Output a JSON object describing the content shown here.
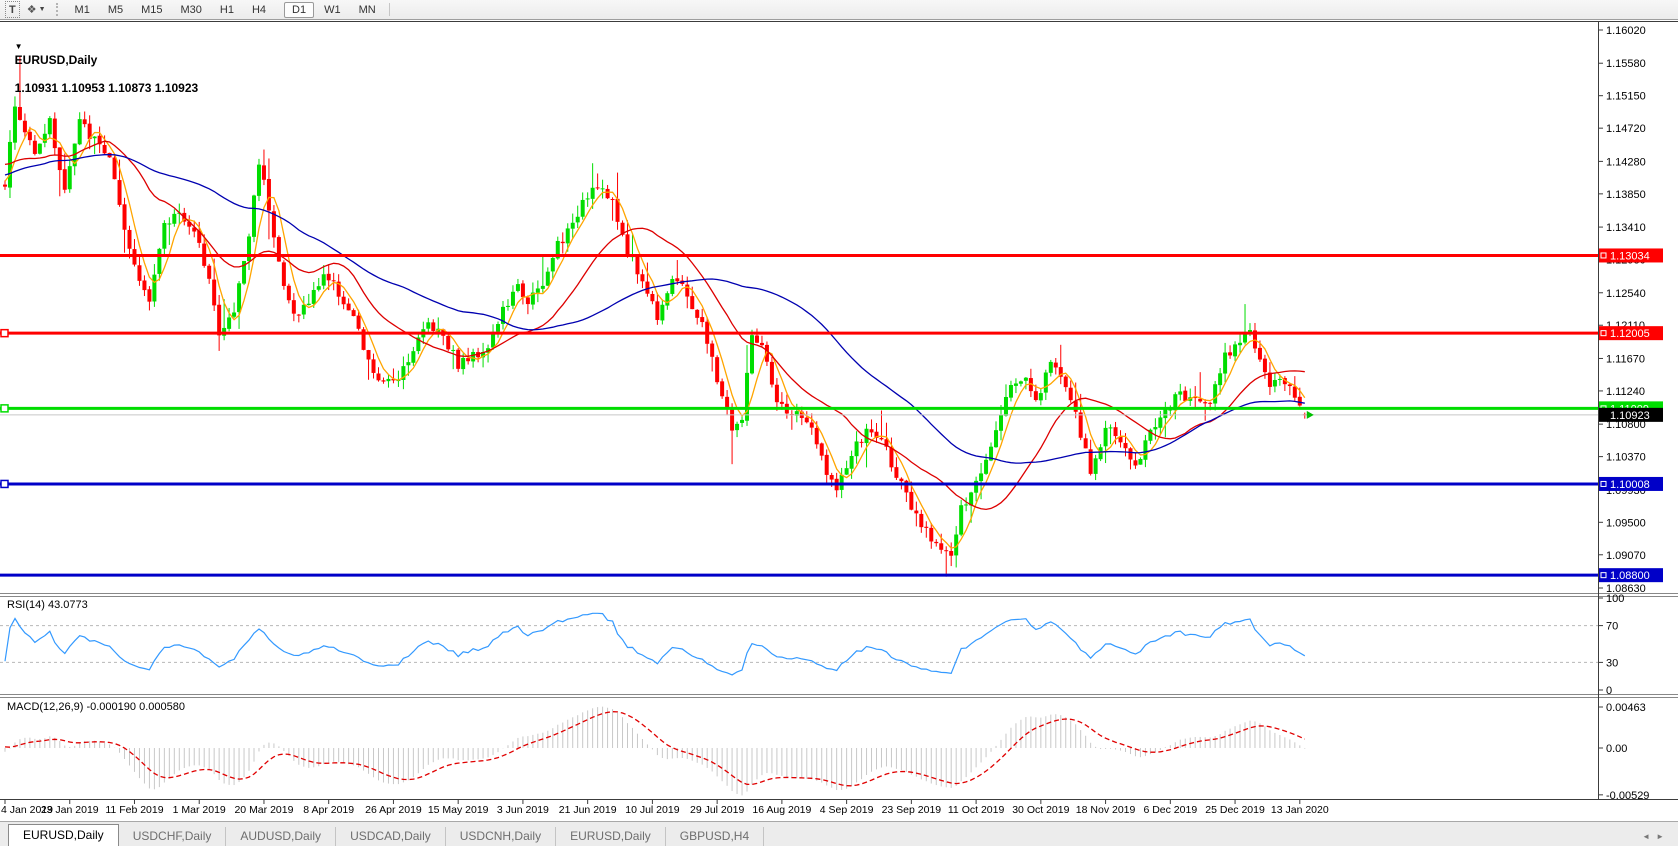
{
  "toolbar": {
    "timeframes": [
      "M1",
      "M5",
      "M15",
      "M30",
      "H1",
      "H4",
      "D1",
      "W1",
      "MN"
    ],
    "active_timeframe": "D1"
  },
  "icons": {
    "text_tool": "T",
    "cycles_tool": "❖",
    "dropdown_caret": "▼",
    "symbol_dropdown": "▼",
    "scroll_left": "◄",
    "scroll_right": "►"
  },
  "chart_header": {
    "symbol": "EURUSD,Daily",
    "ohlc": "1.10931 1.10953 1.10873 1.10923"
  },
  "price_axis": {
    "ticks": [
      "1.16020",
      "1.15580",
      "1.15150",
      "1.14720",
      "1.14280",
      "1.13850",
      "1.13410",
      "1.12980",
      "1.12540",
      "1.12110",
      "1.11670",
      "1.11240",
      "1.10800",
      "1.10370",
      "1.09930",
      "1.09500",
      "1.09070",
      "1.08630"
    ]
  },
  "rsi": {
    "label": "RSI(14) 43.0773",
    "period": 14,
    "last_value": 43.0773,
    "axis_labels": [
      "100",
      "70",
      "30",
      "0"
    ],
    "levels": [
      70,
      30
    ],
    "line_color": "#3399ff"
  },
  "macd": {
    "label": "MACD(12,26,9) -0.000190 0.000580",
    "params": "12,26,9",
    "last_values": [
      "-0.000190",
      "0.000580"
    ],
    "axis_labels": [
      "0.00463",
      "0.00",
      "-0.00529"
    ],
    "bar_color": "#c8c8c8",
    "signal_color": "#e00000"
  },
  "date_axis": {
    "labels": [
      "4 Jan 2019",
      "23 Jan 2019",
      "11 Feb 2019",
      "1 Mar 2019",
      "20 Mar 2019",
      "8 Apr 2019",
      "26 Apr 2019",
      "15 May 2019",
      "3 Jun 2019",
      "21 Jun 2019",
      "10 Jul 2019",
      "29 Jul 2019",
      "16 Aug 2019",
      "4 Sep 2019",
      "23 Sep 2019",
      "11 Oct 2019",
      "30 Oct 2019",
      "18 Nov 2019",
      "6 Dec 2019",
      "25 Dec 2019",
      "13 Jan 2020"
    ]
  },
  "tabs": {
    "items": [
      {
        "label": "EURUSD,Daily",
        "active": true
      },
      {
        "label": "USDCHF,Daily",
        "active": false
      },
      {
        "label": "AUDUSD,Daily",
        "active": false
      },
      {
        "label": "USDCAD,Daily",
        "active": false
      },
      {
        "label": "USDCNH,Daily",
        "active": false
      },
      {
        "label": "EURUSD,Daily",
        "active": false
      },
      {
        "label": "GBPUSD,H4",
        "active": false
      }
    ]
  },
  "chart_data": {
    "type": "candlestick",
    "symbol": "EURUSD",
    "timeframe": "Daily",
    "grid": false,
    "candle_up_color": "#00dd00",
    "candle_down_color": "#ff0000",
    "visible_range": {
      "price_top_tick": 1.1602,
      "price_bottom_tick": 1.0863,
      "first_date": "4 Jan 2019",
      "last_date": "13 Jan 2020"
    },
    "current_price": {
      "value": 1.10923,
      "label": "1.10923",
      "line_color": "#c6c6c6",
      "label_bg": "#000000",
      "arrow_color": "#00c000"
    },
    "last_candle": {
      "open": 1.10931,
      "high": 1.10953,
      "low": 1.10873,
      "close": 1.10923
    },
    "horizontal_lines": [
      {
        "price": 1.13034,
        "label": "1.13034",
        "color": "#ff0000",
        "width": 3,
        "left_marker": false
      },
      {
        "price": 1.12005,
        "label": "1.12005",
        "color": "#ff0000",
        "width": 3,
        "left_marker": true
      },
      {
        "price": 1.11009,
        "label": "1.11009",
        "color": "#00dd00",
        "width": 3,
        "left_marker": true
      },
      {
        "price": 1.10008,
        "label": "1.10008",
        "color": "#0000c8",
        "width": 3,
        "left_marker": true
      },
      {
        "price": 1.088,
        "label": "1.08800",
        "color": "#0000c8",
        "width": 3,
        "left_marker": false
      }
    ],
    "moving_averages": [
      {
        "name": "MA fast",
        "period": 5,
        "color": "#ffa500"
      },
      {
        "name": "MA medium",
        "period": 20,
        "color": "#dd0000"
      },
      {
        "name": "MA slow",
        "period": 50,
        "color": "#0000b0"
      }
    ],
    "bars_visible": 262,
    "bars_per_date_tick": 13,
    "warmup_anchors": [
      [
        -60,
        1.133
      ],
      [
        -45,
        1.137
      ],
      [
        -30,
        1.142
      ],
      [
        -15,
        1.1445
      ]
    ],
    "anchors": [
      [
        0,
        1.14
      ],
      [
        2,
        1.15
      ],
      [
        4,
        1.1465
      ],
      [
        6,
        1.1445
      ],
      [
        9,
        1.148
      ],
      [
        12,
        1.139
      ],
      [
        15,
        1.148
      ],
      [
        18,
        1.1455
      ],
      [
        21,
        1.1435
      ],
      [
        24,
        1.133
      ],
      [
        27,
        1.127
      ],
      [
        29,
        1.125
      ],
      [
        32,
        1.134
      ],
      [
        35,
        1.1365
      ],
      [
        38,
        1.133
      ],
      [
        41,
        1.128
      ],
      [
        43,
        1.1195
      ],
      [
        46,
        1.123
      ],
      [
        49,
        1.133
      ],
      [
        51,
        1.143
      ],
      [
        53,
        1.137
      ],
      [
        56,
        1.126
      ],
      [
        58,
        1.1225
      ],
      [
        61,
        1.124
      ],
      [
        64,
        1.128
      ],
      [
        67,
        1.1255
      ],
      [
        70,
        1.122
      ],
      [
        73,
        1.116
      ],
      [
        76,
        1.113
      ],
      [
        79,
        1.1145
      ],
      [
        82,
        1.118
      ],
      [
        85,
        1.1215
      ],
      [
        88,
        1.12
      ],
      [
        91,
        1.116
      ],
      [
        94,
        1.117
      ],
      [
        97,
        1.1185
      ],
      [
        100,
        1.123
      ],
      [
        103,
        1.126
      ],
      [
        105,
        1.1245
      ],
      [
        108,
        1.126
      ],
      [
        111,
        1.132
      ],
      [
        114,
        1.134
      ],
      [
        116,
        1.138
      ],
      [
        119,
        1.14
      ],
      [
        122,
        1.137
      ],
      [
        125,
        1.131
      ],
      [
        128,
        1.127
      ],
      [
        131,
        1.1225
      ],
      [
        134,
        1.1275
      ],
      [
        137,
        1.125
      ],
      [
        140,
        1.121
      ],
      [
        143,
        1.114
      ],
      [
        146,
        1.1075
      ],
      [
        148,
        1.1085
      ],
      [
        150,
        1.12
      ],
      [
        152,
        1.118
      ],
      [
        155,
        1.1105
      ],
      [
        158,
        1.1095
      ],
      [
        161,
        1.1085
      ],
      [
        164,
        1.1035
      ],
      [
        167,
        1.099
      ],
      [
        170,
        1.104
      ],
      [
        173,
        1.107
      ],
      [
        176,
        1.106
      ],
      [
        179,
        1.1015
      ],
      [
        182,
        1.0965
      ],
      [
        185,
        1.0935
      ],
      [
        188,
        1.092
      ],
      [
        190,
        1.0905
      ],
      [
        192,
        1.0965
      ],
      [
        194,
        1.0985
      ],
      [
        197,
        1.1035
      ],
      [
        200,
        1.11
      ],
      [
        202,
        1.113
      ],
      [
        205,
        1.1145
      ],
      [
        207,
        1.111
      ],
      [
        210,
        1.116
      ],
      [
        212,
        1.115
      ],
      [
        215,
        1.109
      ],
      [
        218,
        1.1015
      ],
      [
        221,
        1.1075
      ],
      [
        224,
        1.106
      ],
      [
        227,
        1.102
      ],
      [
        230,
        1.1075
      ],
      [
        233,
        1.1095
      ],
      [
        236,
        1.112
      ],
      [
        239,
        1.111
      ],
      [
        242,
        1.1115
      ],
      [
        245,
        1.117
      ],
      [
        248,
        1.1195
      ],
      [
        250,
        1.1205
      ],
      [
        252,
        1.116
      ],
      [
        254,
        1.1125
      ],
      [
        256,
        1.114
      ],
      [
        258,
        1.113
      ],
      [
        260,
        1.111
      ],
      [
        261,
        1.1092
      ]
    ],
    "wick_events": [
      {
        "i": 3,
        "high": 1.1568
      },
      {
        "i": 43,
        "low": 1.1177
      },
      {
        "i": 119,
        "high": 1.1412
      },
      {
        "i": 146,
        "low": 1.1027
      },
      {
        "i": 189,
        "low": 1.0878
      },
      {
        "i": 249,
        "high": 1.1239
      }
    ]
  }
}
